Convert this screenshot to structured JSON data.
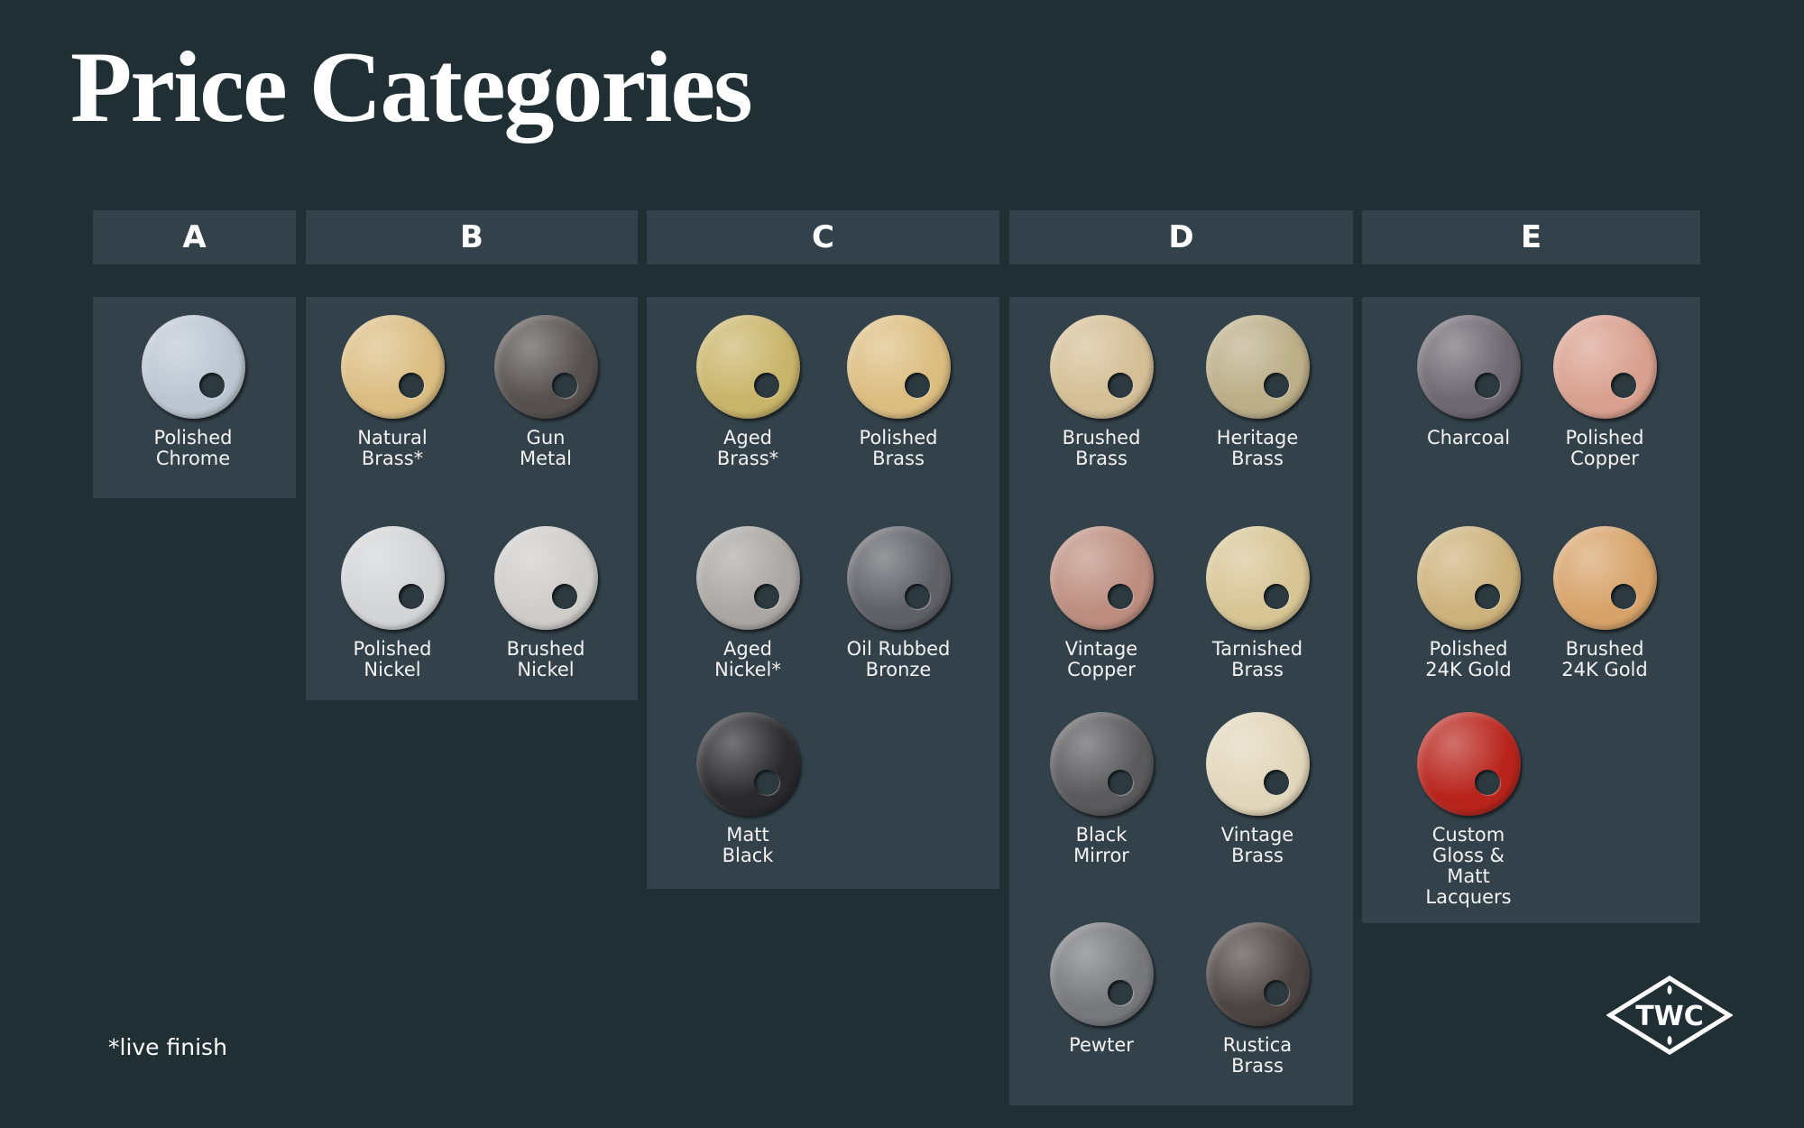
{
  "title": "Price Categories",
  "footnote": "*live finish",
  "logo_text": "TWC",
  "colors": {
    "background": "#1f2f33",
    "panel": "#33424a"
  },
  "categories": [
    {
      "label": "A",
      "finishes": [
        {
          "name": "Polished\nChrome",
          "color": "#bcc6d2"
        }
      ]
    },
    {
      "label": "B",
      "finishes": [
        {
          "name": "Natural\nBrass*",
          "color": "#dbbd82"
        },
        {
          "name": "Gun\nMetal",
          "color": "#56514f"
        },
        {
          "name": "Polished\nNickel",
          "color": "#d3d4d6"
        },
        {
          "name": "Brushed\nNickel",
          "color": "#cfcdca"
        }
      ]
    },
    {
      "label": "C",
      "finishes": [
        {
          "name": "Aged\nBrass*",
          "color": "#c9b56a"
        },
        {
          "name": "Polished\nBrass",
          "color": "#dcbd80"
        },
        {
          "name": "Aged\nNickel*",
          "color": "#aaa7a4"
        },
        {
          "name": "Oil Rubbed\nBronze",
          "color": "#606167"
        },
        {
          "name": "Matt\nBlack",
          "color": "#2a2a2d"
        }
      ]
    },
    {
      "label": "D",
      "finishes": [
        {
          "name": "Brushed\nBrass",
          "color": "#d4bf96"
        },
        {
          "name": "Heritage\nBrass",
          "color": "#bbae88"
        },
        {
          "name": "Vintage\nCopper",
          "color": "#bd8e80"
        },
        {
          "name": "Tarnished\nBrass",
          "color": "#d7c595"
        },
        {
          "name": "Black\nMirror",
          "color": "#5a5a5c"
        },
        {
          "name": "Vintage\nBrass",
          "color": "#e2d6bb"
        },
        {
          "name": "Pewter",
          "color": "#77787c"
        },
        {
          "name": "Rustica\nBrass",
          "color": "#4c4443"
        }
      ]
    },
    {
      "label": "E",
      "finishes": [
        {
          "name": "Charcoal",
          "color": "#6e6870"
        },
        {
          "name": "Polished\nCopper",
          "color": "#d9a08f"
        },
        {
          "name": "Polished\n24K Gold",
          "color": "#cdb27c"
        },
        {
          "name": "Brushed\n24K Gold",
          "color": "#d7a36a"
        },
        {
          "name": "Custom\nGloss &\nMatt\nLacquers",
          "color": "#b8241c"
        }
      ]
    }
  ]
}
